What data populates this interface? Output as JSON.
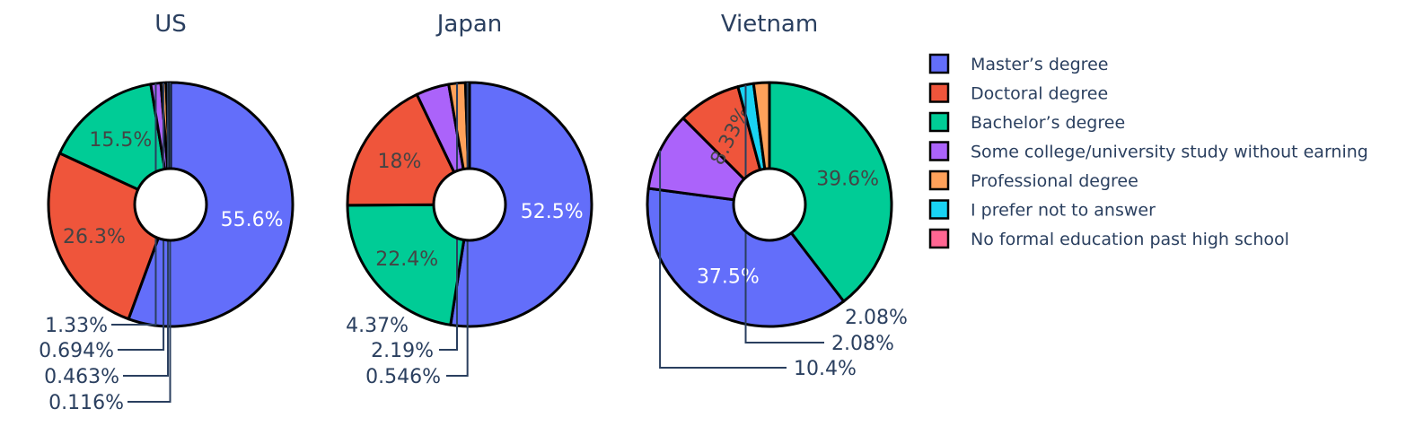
{
  "chart_data": {
    "type": "pie",
    "hole": true,
    "categories": [
      "Master’s degree",
      "Doctoral degree",
      "Bachelor’s degree",
      "Some college/university study without earning",
      "Professional degree",
      "I prefer not to answer",
      "No formal education past high school"
    ],
    "colors": [
      "#636efa",
      "#ef553b",
      "#00cc96",
      "#ab63fa",
      "#ffa15a",
      "#19d3f3",
      "#ff6692"
    ],
    "legend_position": "right",
    "pies": [
      {
        "title": "US",
        "slices": [
          {
            "category": "Master’s degree",
            "value": 55.6,
            "label": "55.6%"
          },
          {
            "category": "Doctoral degree",
            "value": 26.3,
            "label": "26.3%"
          },
          {
            "category": "Bachelor’s degree",
            "value": 15.5,
            "label": "15.5%"
          },
          {
            "category": "Some college/university study without earning",
            "value": 1.33,
            "label": "1.33%"
          },
          {
            "category": "Professional degree",
            "value": 0.694,
            "label": "0.694%"
          },
          {
            "category": "I prefer not to answer",
            "value": 0.463,
            "label": "0.463%"
          },
          {
            "category": "No formal education past high school",
            "value": 0.116,
            "label": "0.116%"
          }
        ]
      },
      {
        "title": "Japan",
        "slices": [
          {
            "category": "Master’s degree",
            "value": 52.5,
            "label": "52.5%"
          },
          {
            "category": "Bachelor’s degree",
            "value": 22.4,
            "label": "22.4%"
          },
          {
            "category": "Doctoral degree",
            "value": 18,
            "label": "18%"
          },
          {
            "category": "Some college/university study without earning",
            "value": 4.37,
            "label": "4.37%"
          },
          {
            "category": "Professional degree",
            "value": 2.19,
            "label": "2.19%"
          },
          {
            "category": "I prefer not to answer",
            "value": 0.546,
            "label": "0.546%"
          }
        ]
      },
      {
        "title": "Vietnam",
        "slices": [
          {
            "category": "Bachelor’s degree",
            "value": 39.6,
            "label": "39.6%"
          },
          {
            "category": "Master’s degree",
            "value": 37.5,
            "label": "37.5%"
          },
          {
            "category": "Some college/university study without earning",
            "value": 10.4,
            "label": "10.4%"
          },
          {
            "category": "Doctoral degree",
            "value": 8.33,
            "label": "8.33%"
          },
          {
            "category": "I prefer not to answer",
            "value": 2.08,
            "label": "2.08%"
          },
          {
            "category": "Professional degree",
            "value": 2.08,
            "label": "2.08%"
          }
        ]
      }
    ]
  }
}
